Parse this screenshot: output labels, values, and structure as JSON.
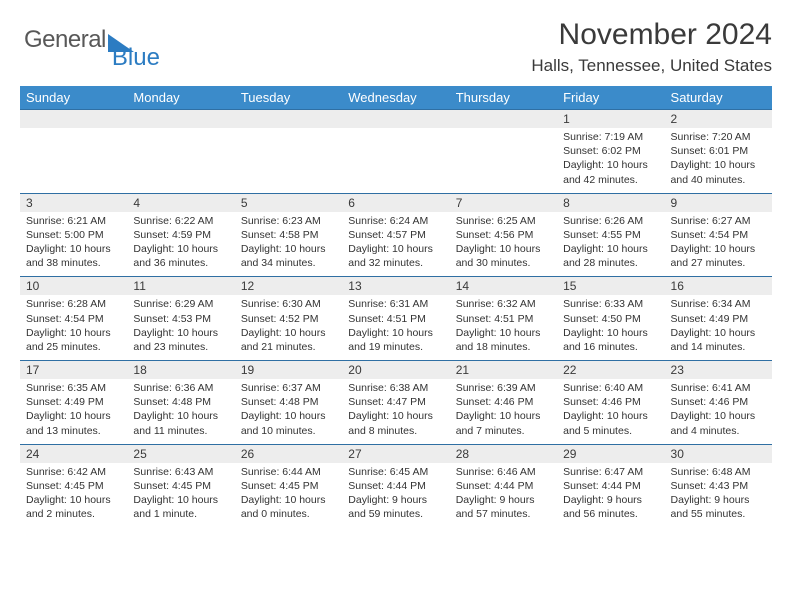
{
  "brand": {
    "part1": "General",
    "part2": "Blue"
  },
  "header": {
    "title": "November 2024",
    "location": "Halls, Tennessee, United States"
  },
  "style": {
    "header_bg": "#3b8bca",
    "header_fg": "#ffffff",
    "daynum_bg": "#ededed",
    "rule_color": "#2f6fa3",
    "text_color": "#333333"
  },
  "daynames": [
    "Sunday",
    "Monday",
    "Tuesday",
    "Wednesday",
    "Thursday",
    "Friday",
    "Saturday"
  ],
  "weeks": [
    [
      null,
      null,
      null,
      null,
      null,
      {
        "n": "1",
        "rise": "7:19 AM",
        "set": "6:02 PM",
        "dl": "10 hours and 42 minutes."
      },
      {
        "n": "2",
        "rise": "7:20 AM",
        "set": "6:01 PM",
        "dl": "10 hours and 40 minutes."
      }
    ],
    [
      {
        "n": "3",
        "rise": "6:21 AM",
        "set": "5:00 PM",
        "dl": "10 hours and 38 minutes."
      },
      {
        "n": "4",
        "rise": "6:22 AM",
        "set": "4:59 PM",
        "dl": "10 hours and 36 minutes."
      },
      {
        "n": "5",
        "rise": "6:23 AM",
        "set": "4:58 PM",
        "dl": "10 hours and 34 minutes."
      },
      {
        "n": "6",
        "rise": "6:24 AM",
        "set": "4:57 PM",
        "dl": "10 hours and 32 minutes."
      },
      {
        "n": "7",
        "rise": "6:25 AM",
        "set": "4:56 PM",
        "dl": "10 hours and 30 minutes."
      },
      {
        "n": "8",
        "rise": "6:26 AM",
        "set": "4:55 PM",
        "dl": "10 hours and 28 minutes."
      },
      {
        "n": "9",
        "rise": "6:27 AM",
        "set": "4:54 PM",
        "dl": "10 hours and 27 minutes."
      }
    ],
    [
      {
        "n": "10",
        "rise": "6:28 AM",
        "set": "4:54 PM",
        "dl": "10 hours and 25 minutes."
      },
      {
        "n": "11",
        "rise": "6:29 AM",
        "set": "4:53 PM",
        "dl": "10 hours and 23 minutes."
      },
      {
        "n": "12",
        "rise": "6:30 AM",
        "set": "4:52 PM",
        "dl": "10 hours and 21 minutes."
      },
      {
        "n": "13",
        "rise": "6:31 AM",
        "set": "4:51 PM",
        "dl": "10 hours and 19 minutes."
      },
      {
        "n": "14",
        "rise": "6:32 AM",
        "set": "4:51 PM",
        "dl": "10 hours and 18 minutes."
      },
      {
        "n": "15",
        "rise": "6:33 AM",
        "set": "4:50 PM",
        "dl": "10 hours and 16 minutes."
      },
      {
        "n": "16",
        "rise": "6:34 AM",
        "set": "4:49 PM",
        "dl": "10 hours and 14 minutes."
      }
    ],
    [
      {
        "n": "17",
        "rise": "6:35 AM",
        "set": "4:49 PM",
        "dl": "10 hours and 13 minutes."
      },
      {
        "n": "18",
        "rise": "6:36 AM",
        "set": "4:48 PM",
        "dl": "10 hours and 11 minutes."
      },
      {
        "n": "19",
        "rise": "6:37 AM",
        "set": "4:48 PM",
        "dl": "10 hours and 10 minutes."
      },
      {
        "n": "20",
        "rise": "6:38 AM",
        "set": "4:47 PM",
        "dl": "10 hours and 8 minutes."
      },
      {
        "n": "21",
        "rise": "6:39 AM",
        "set": "4:46 PM",
        "dl": "10 hours and 7 minutes."
      },
      {
        "n": "22",
        "rise": "6:40 AM",
        "set": "4:46 PM",
        "dl": "10 hours and 5 minutes."
      },
      {
        "n": "23",
        "rise": "6:41 AM",
        "set": "4:46 PM",
        "dl": "10 hours and 4 minutes."
      }
    ],
    [
      {
        "n": "24",
        "rise": "6:42 AM",
        "set": "4:45 PM",
        "dl": "10 hours and 2 minutes."
      },
      {
        "n": "25",
        "rise": "6:43 AM",
        "set": "4:45 PM",
        "dl": "10 hours and 1 minute."
      },
      {
        "n": "26",
        "rise": "6:44 AM",
        "set": "4:45 PM",
        "dl": "10 hours and 0 minutes."
      },
      {
        "n": "27",
        "rise": "6:45 AM",
        "set": "4:44 PM",
        "dl": "9 hours and 59 minutes."
      },
      {
        "n": "28",
        "rise": "6:46 AM",
        "set": "4:44 PM",
        "dl": "9 hours and 57 minutes."
      },
      {
        "n": "29",
        "rise": "6:47 AM",
        "set": "4:44 PM",
        "dl": "9 hours and 56 minutes."
      },
      {
        "n": "30",
        "rise": "6:48 AM",
        "set": "4:43 PM",
        "dl": "9 hours and 55 minutes."
      }
    ]
  ],
  "labels": {
    "sunrise": "Sunrise:",
    "sunset": "Sunset:",
    "daylight": "Daylight:"
  }
}
